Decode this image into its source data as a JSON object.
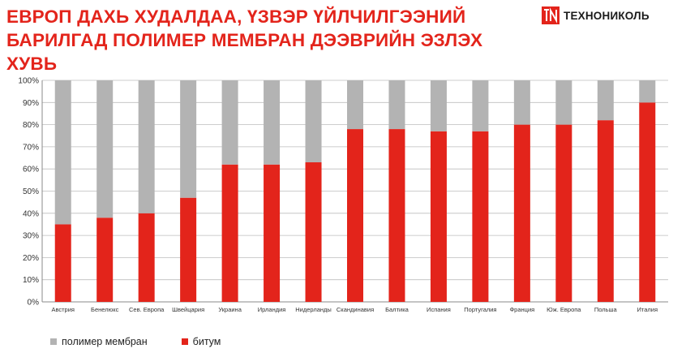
{
  "header": {
    "title": "ЕВРОП ДАХЬ ХУДАЛДАА, ҮЗВЭР ҮЙЛЧИЛГЭЭНИЙ БАРИЛГАД ПОЛИМЕР МЕМБРАН ДЭЭВРИЙН ЭЗЛЭХ ХУВЬ",
    "brand": "ТЕХНОНИКОЛЬ",
    "brand_icon": "tn-logo-icon",
    "brand_color": "#e3241b"
  },
  "chart_data": {
    "type": "bar",
    "stacked": true,
    "categories": [
      "Австрия",
      "Бенелюкс",
      "Сев. Европа",
      "Швейцария",
      "Украина",
      "Ирландия",
      "Нидерланды",
      "Скандинавия",
      "Балтика",
      "Испания",
      "Португалия",
      "Франция",
      "Юж. Европа",
      "Польша",
      "Италия"
    ],
    "series": [
      {
        "name": "битум",
        "color": "#e3241b",
        "values": [
          35,
          38,
          40,
          47,
          62,
          62,
          63,
          78,
          78,
          77,
          77,
          80,
          80,
          82,
          90
        ]
      },
      {
        "name": "полимер мембран",
        "color": "#b3b3b3",
        "values": [
          65,
          62,
          60,
          53,
          38,
          38,
          37,
          22,
          22,
          23,
          23,
          20,
          20,
          18,
          10
        ]
      }
    ],
    "ylim": [
      0,
      100
    ],
    "yticks": [
      "0%",
      "10%",
      "20%",
      "30%",
      "40%",
      "50%",
      "60%",
      "70%",
      "80%",
      "90%",
      "100%"
    ],
    "grid": true,
    "legend": {
      "position": "bottom-left",
      "items": [
        {
          "label": "полимер мембран",
          "color": "#b3b3b3"
        },
        {
          "label": "битум",
          "color": "#e3241b"
        }
      ]
    }
  }
}
